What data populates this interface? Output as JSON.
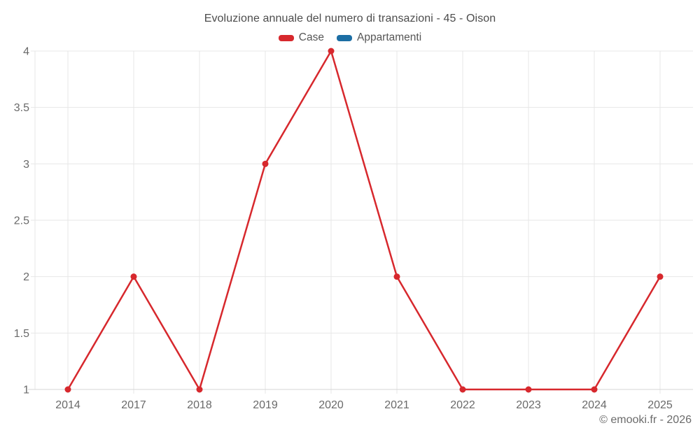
{
  "chart_data": {
    "type": "line",
    "title": "Evoluzione annuale del numero di transazioni - 45 - Oison",
    "categories": [
      "2014",
      "2017",
      "2018",
      "2019",
      "2020",
      "2021",
      "2022",
      "2023",
      "2024",
      "2025"
    ],
    "series": [
      {
        "name": "Case",
        "color": "#d7282d",
        "values": [
          1,
          2,
          1,
          3,
          4,
          2,
          1,
          1,
          1,
          2
        ]
      },
      {
        "name": "Appartamenti",
        "color": "#1c6ea4",
        "values": []
      }
    ],
    "ylim": [
      1,
      4
    ],
    "yticks": [
      1,
      1.5,
      2,
      2.5,
      3,
      3.5,
      4
    ],
    "grid": true,
    "legend_position": "top",
    "xlabel": "",
    "ylabel": ""
  },
  "footer": {
    "text": "© emooki.fr - 2026"
  },
  "colors": {
    "case_red": "#d7282d",
    "appartamenti_blue": "#1c6ea4",
    "gridline": "#e7e7e7",
    "axis_line": "#d6d6d6",
    "tick_label": "#6a6a6a",
    "title_text": "#4c4c4c",
    "legend_text": "#565656",
    "background": "#ffffff"
  }
}
